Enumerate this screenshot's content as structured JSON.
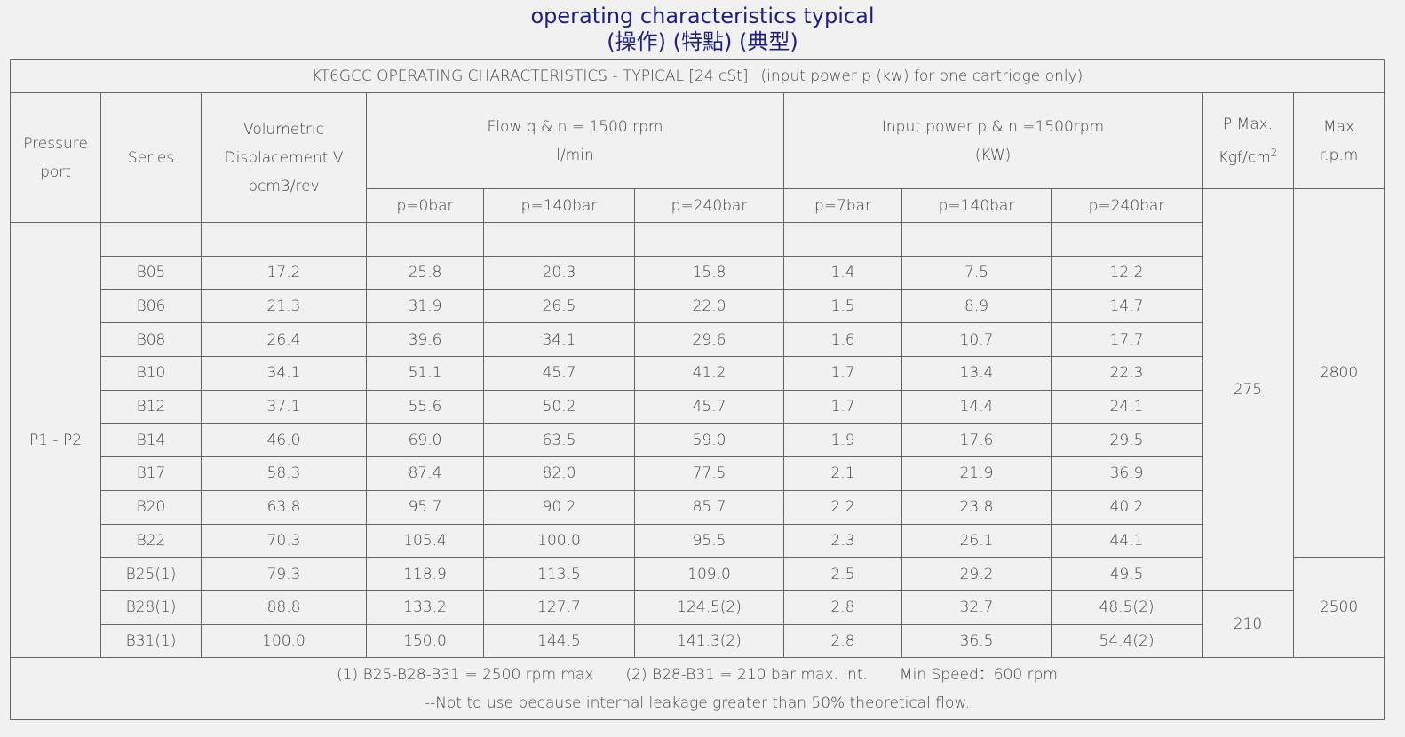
{
  "title": {
    "line1": "operating characteristics typical",
    "line2": "(操作) (特點) (典型)"
  },
  "table": {
    "caption": [
      "KT6GCC OPERATING CHARACTERISTICS - TYPICAL [24 cSt]",
      "(input power p (kw) for one cartridge only)"
    ],
    "header": {
      "pressure_port": [
        "Pressure",
        "port"
      ],
      "series": "Series",
      "displacement": [
        "Volumetric",
        "Displacement V",
        "pcm3/rev"
      ],
      "flow": [
        "Flow q & n = 1500 rpm",
        "l/min"
      ],
      "power": [
        "Input power p & n =1500rpm",
        "(KW)"
      ],
      "p_max": {
        "line1": "P Max.",
        "unit": "Kgf/cm",
        "unit_sup": "2"
      },
      "max_rpm": [
        "Max",
        "r.p.m"
      ],
      "flow_sub": [
        "p=0bar",
        "p=140bar",
        "p=240bar"
      ],
      "power_sub": [
        "p=7bar",
        "p=140bar",
        "p=240bar"
      ]
    },
    "pressure_port_value": "P1 - P2",
    "rows": [
      [
        "B05",
        "17.2",
        "25.8",
        "20.3",
        "15.8",
        "1.4",
        "7.5",
        "12.2"
      ],
      [
        "B06",
        "21.3",
        "31.9",
        "26.5",
        "22.0",
        "1.5",
        "8.9",
        "14.7"
      ],
      [
        "B08",
        "26.4",
        "39.6",
        "34.1",
        "29.6",
        "1.6",
        "10.7",
        "17.7"
      ],
      [
        "B10",
        "34.1",
        "51.1",
        "45.7",
        "41.2",
        "1.7",
        "13.4",
        "22.3"
      ],
      [
        "B12",
        "37.1",
        "55.6",
        "50.2",
        "45.7",
        "1.7",
        "14.4",
        "24.1"
      ],
      [
        "B14",
        "46.0",
        "69.0",
        "63.5",
        "59.0",
        "1.9",
        "17.6",
        "29.5"
      ],
      [
        "B17",
        "58.3",
        "87.4",
        "82.0",
        "77.5",
        "2.1",
        "21.9",
        "36.9"
      ],
      [
        "B20",
        "63.8",
        "95.7",
        "90.2",
        "85.7",
        "2.2",
        "23.8",
        "40.2"
      ],
      [
        "B22",
        "70.3",
        "105.4",
        "100.0",
        "95.5",
        "2.3",
        "26.1",
        "44.1"
      ],
      [
        "B25(1)",
        "79.3",
        "118.9",
        "113.5",
        "109.0",
        "2.5",
        "29.2",
        "49.5"
      ],
      [
        "B28(1)",
        "88.8",
        "133.2",
        "127.7",
        "124.5(2)",
        "2.8",
        "32.7",
        "48.5(2)"
      ],
      [
        "B31(1)",
        "100.0",
        "150.0",
        "144.5",
        "141.3(2)",
        "2.8",
        "36.5",
        "54.4(2)"
      ]
    ],
    "p_max_values": [
      "275",
      "210"
    ],
    "max_rpm_values": [
      "2800",
      "2500"
    ],
    "footer": {
      "notes": [
        "(1) B25-B28-B31 = 2500 rpm max",
        "(2) B28-B31 = 210 bar max. int.",
        "Min Speed：600 rpm"
      ],
      "line2": "--Not to use because internal leakage greater than 50% theoretical flow."
    }
  }
}
